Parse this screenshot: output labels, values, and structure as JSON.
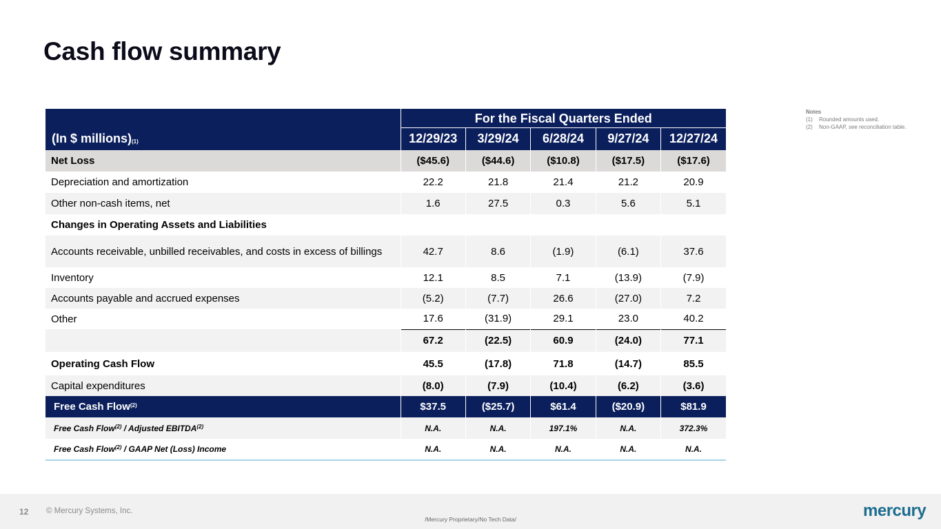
{
  "slide": {
    "title": "Cash flow summary",
    "page_number": "12",
    "copyright": "© Mercury Systems, Inc.",
    "classification": "/Mercury Proprietary/No Tech Data/",
    "logo_text": "mercury"
  },
  "notes": {
    "title": "Notes",
    "items": [
      {
        "num": "(1)",
        "text": "Rounded amounts used."
      },
      {
        "num": "(2)",
        "text": "Non-GAAP, see reconciliation table."
      }
    ]
  },
  "table": {
    "group_header": "For the Fiscal Quarters Ended",
    "units_label": "(In $ millions)",
    "units_note": "(1)",
    "columns": [
      "12/29/23",
      "3/29/24",
      "6/28/24",
      "9/27/24",
      "12/27/24"
    ],
    "rows": {
      "net_loss": {
        "label": "Net Loss",
        "values": [
          "($45.6)",
          "($44.6)",
          "($10.8)",
          "($17.5)",
          "($17.6)"
        ]
      },
      "depreciation": {
        "label": "Depreciation and amortization",
        "values": [
          "22.2",
          "21.8",
          "21.4",
          "21.2",
          "20.9"
        ]
      },
      "other_noncash": {
        "label": "Other non-cash items, net",
        "values": [
          "1.6",
          "27.5",
          "0.3",
          "5.6",
          "5.1"
        ]
      },
      "changes_header": {
        "label": "Changes in Operating Assets and Liabilities"
      },
      "receivables": {
        "label": "Accounts receivable, unbilled receivables, and costs in excess of billings",
        "values": [
          "42.7",
          "8.6",
          "(1.9)",
          "(6.1)",
          "37.6"
        ]
      },
      "inventory": {
        "label": "Inventory",
        "values": [
          "12.1",
          "8.5",
          "7.1",
          "(13.9)",
          "(7.9)"
        ]
      },
      "payables": {
        "label": "Accounts payable and accrued expenses",
        "values": [
          "(5.2)",
          "(7.7)",
          "26.6",
          "(27.0)",
          "7.2"
        ]
      },
      "other": {
        "label": "Other",
        "values": [
          "17.6",
          "(31.9)",
          "29.1",
          "23.0",
          "40.2"
        ]
      },
      "subtotal": {
        "values": [
          "67.2",
          "(22.5)",
          "60.9",
          "(24.0)",
          "77.1"
        ]
      },
      "operating_cash_flow": {
        "label": "Operating Cash Flow",
        "values": [
          "45.5",
          "(17.8)",
          "71.8",
          "(14.7)",
          "85.5"
        ]
      },
      "capex": {
        "label": "Capital expenditures",
        "values": [
          "(8.0)",
          "(7.9)",
          "(10.4)",
          "(6.2)",
          "(3.6)"
        ]
      },
      "free_cash_flow": {
        "label": "Free Cash Flow",
        "note": "(2)",
        "values": [
          "$37.5",
          "($25.7)",
          "$61.4",
          "($20.9)",
          "$81.9"
        ]
      },
      "fcf_ebitda": {
        "label_a": "Free Cash Flow",
        "note_a": "(2)",
        "label_b": " / Adjusted EBITDA",
        "note_b": "(2)",
        "values": [
          "N.A.",
          "N.A.",
          "197.1%",
          "N.A.",
          "372.3%"
        ]
      },
      "fcf_net_income": {
        "label_a": "Free Cash Flow",
        "note_a": "(2)",
        "label_b": " / GAAP Net (Loss) Income",
        "values": [
          "N.A.",
          "N.A.",
          "N.A.",
          "N.A.",
          "N.A."
        ]
      }
    }
  }
}
